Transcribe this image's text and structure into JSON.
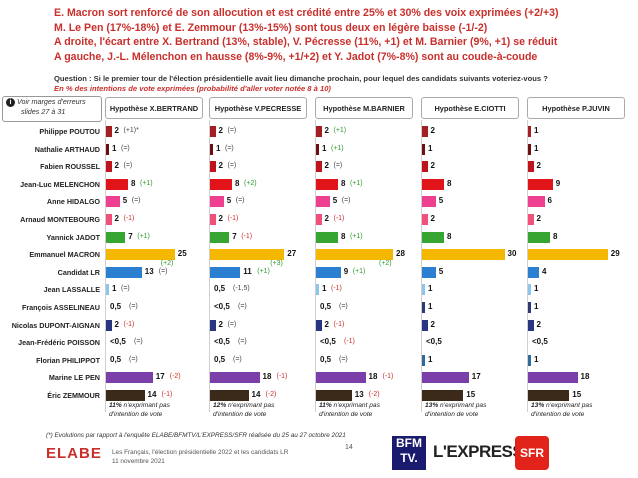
{
  "headline": [
    "E. Macron sort renforcé de son allocution et est crédité entre 25% et 30% des voix exprimées (+2/+3)",
    "M. Le Pen (17%-18%) et E. Zemmour (13%-15%) sont tous deux en légère baisse (-1/-2)",
    "A droite, l'écart entre X. Bertrand (13%, stable), V. Pécresse (11%, +1) et M. Barnier (9%, +1) se réduit",
    "A gauche, J.-L. Mélenchon en hausse (8%-9%, +1/+2) et Y. Jadot (7%-8%) sont au coude-à-coude"
  ],
  "question": {
    "text": "Question : Si le premier tour de l'élection présidentielle avait lieu dimanche prochain, pour lequel des candidats suivants voteriez-vous ?",
    "subtitle": "En % des intentions de vote exprimées (probabilité d'aller voter notée 8 à 10)"
  },
  "note": {
    "line1": "Voir marges d'erreurs",
    "line2": "slides 27 à 31"
  },
  "chart_data": {
    "type": "bar",
    "orientation": "horizontal",
    "categories": [
      "Philippe POUTOU",
      "Nathalie ARTHAUD",
      "Fabien ROUSSEL",
      "Jean-Luc MELENCHON",
      "Anne HIDALGO",
      "Arnaud MONTEBOURG",
      "Yannick JADOT",
      "Emmanuel MACRON",
      "Candidat LR",
      "Jean LASSALLE",
      "François ASSELINEAU",
      "Nicolas DUPONT-AIGNAN",
      "Jean-Frédéric POISSON",
      "Florian PHILIPPOT",
      "Marine LE PEN",
      "Éric ZEMMOUR"
    ],
    "colors": [
      "#a31f24",
      "#6d1014",
      "#c0141c",
      "#e1141a",
      "#ee3f91",
      "#f0507a",
      "#36a532",
      "#f5b800",
      "#2b7fd0",
      "#8cc6e8",
      "#2b3a73",
      "#283580",
      "#1a3d8f",
      "#2e6b9e",
      "#7a3fa8",
      "#3b2a1a"
    ],
    "series": [
      {
        "name": "Hypothèse X.BERTRAND",
        "values": [
          2,
          1,
          2,
          8,
          5,
          2,
          7,
          25,
          13,
          1,
          0.5,
          2,
          0.5,
          0.5,
          17,
          14
        ],
        "labels": [
          "2",
          "1",
          "2",
          "8",
          "5",
          "2",
          "7",
          "25",
          "13",
          "1",
          "0,5",
          "2",
          "<0,5",
          "0,5",
          "17",
          "14"
        ],
        "evolutions": [
          "(+1)*",
          "(=)",
          "(=)",
          "(+1)",
          "(=)",
          "(-1)",
          "(+1)",
          "(+2)",
          "(=)",
          "(=)",
          "(=)",
          "(-1)",
          "(=)",
          "(=)",
          "(-2)",
          "(-1)"
        ],
        "note": [
          "11%",
          " n'exprimant pas d'intention de vote"
        ]
      },
      {
        "name": "Hypothèse V.PECRESSE",
        "values": [
          2,
          1,
          2,
          8,
          5,
          2,
          7,
          27,
          11,
          0.5,
          0.5,
          2,
          0.5,
          0.5,
          18,
          14
        ],
        "labels": [
          "2",
          "1",
          "2",
          "8",
          "5",
          "2",
          "7",
          "27",
          "11",
          "0,5",
          "<0,5",
          "2",
          "<0,5",
          "0,5",
          "18",
          "14"
        ],
        "evolutions": [
          "(=)",
          "(=)",
          "(=)",
          "(+2)",
          "(=)",
          "(-1)",
          "(-1)",
          "(+3)",
          "(+1)",
          "(-1,5)",
          "(=)",
          "(=)",
          "(=)",
          "(=)",
          "(-1)",
          "(-2)"
        ],
        "note": [
          "12%",
          " n'exprimant pas d'intention de vote"
        ]
      },
      {
        "name": "Hypothèse M.BARNIER",
        "values": [
          2,
          1,
          2,
          8,
          5,
          2,
          8,
          28,
          9,
          1,
          0.5,
          2,
          0.5,
          0.5,
          18,
          13
        ],
        "labels": [
          "2",
          "1",
          "2",
          "8",
          "5",
          "2",
          "8",
          "28",
          "9",
          "1",
          "0,5",
          "2",
          "<0,5",
          "0,5",
          "18",
          "13"
        ],
        "evolutions": [
          "(+1)",
          "(+1)",
          "(=)",
          "(+1)",
          "(=)",
          "(-1)",
          "(+1)",
          "(+2)",
          "(+1)",
          "(-1)",
          "(=)",
          "(-1)",
          "(-1)",
          "(=)",
          "(-1)",
          "(-2)"
        ],
        "note": [
          "11%",
          " n'exprimant pas d'intention de vote"
        ]
      },
      {
        "name": "Hypothèse E.CIOTTI",
        "values": [
          2,
          1,
          2,
          8,
          5,
          2,
          8,
          30,
          5,
          1,
          1,
          2,
          0.5,
          1,
          17,
          15
        ],
        "labels": [
          "2",
          "1",
          "2",
          "8",
          "5",
          "2",
          "8",
          "30",
          "5",
          "1",
          "1",
          "2",
          "<0,5",
          "1",
          "17",
          "15"
        ],
        "evolutions": [],
        "note": [
          "13%",
          " n'exprimant pas d'intention de vote"
        ]
      },
      {
        "name": "Hypothèse P.JUVIN",
        "values": [
          1,
          1,
          2,
          9,
          6,
          2,
          8,
          29,
          4,
          1,
          1,
          2,
          0.5,
          1,
          18,
          15
        ],
        "labels": [
          "1",
          "1",
          "2",
          "9",
          "6",
          "2",
          "8",
          "29",
          "4",
          "1",
          "1",
          "2",
          "<0,5",
          "1",
          "18",
          "15"
        ],
        "evolutions": [],
        "note": [
          "13%",
          " n'exprimant pas d'intention de vote"
        ]
      }
    ]
  },
  "footnote": "(*) Evolutions par rapport à l'enquête ELABE/BFMTV/L'EXPRESS/SFR réalisée du 25 au 27 octobre 2021",
  "footer": {
    "brand": "ELABE",
    "study_title": "Les Français, l'élection présidentielle 2022 et les candidats LR",
    "date": "11 novembre 2021",
    "page": "14",
    "logos": {
      "bfm": "BFM TV.",
      "express": "L'EXPRESS",
      "sfr": "SFR"
    }
  }
}
